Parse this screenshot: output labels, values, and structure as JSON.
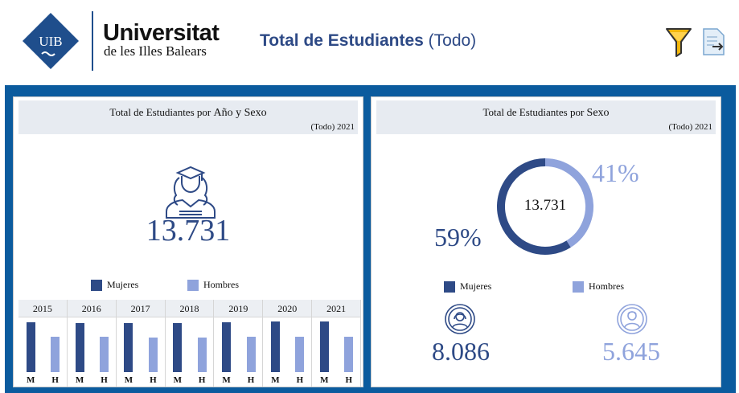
{
  "header": {
    "logo_mark_text": "UIB",
    "logo_name": "Universitat",
    "logo_subtitle": "de les Illes Balears",
    "title_bold": "Total de Estudiantes",
    "title_rest": "(Todo)",
    "filter_icon": "filter-funnel-icon",
    "export_icon": "export-document-icon"
  },
  "colors": {
    "frame": "#0b5b9e",
    "mujeres": "#2e4a86",
    "hombres": "#8fa3dc",
    "title": "#2e4a86"
  },
  "left_panel": {
    "title_prefix": "Total de Estudiantes por",
    "title_suffix": "Año y Sexo",
    "filter_text": "(Todo) 2021",
    "total": "13.731",
    "legend": [
      "Mujeres",
      "Hombres"
    ],
    "label_m": "M",
    "label_h": "H"
  },
  "right_panel": {
    "title_prefix": "Total de Estudiantes por",
    "title_suffix": "Sexo",
    "filter_text": "(Todo) 2021",
    "center_total": "13.731",
    "pct_mujeres": "59%",
    "pct_hombres": "41%",
    "legend": [
      "Mujeres",
      "Hombres"
    ],
    "mujeres_total": "8.086",
    "hombres_total": "5.645"
  },
  "chart_data": [
    {
      "type": "bar",
      "title": "Total de Estudiantes por Año y Sexo",
      "categories": [
        "2015",
        "2016",
        "2017",
        "2018",
        "2019",
        "2020",
        "2021"
      ],
      "series": [
        {
          "name": "Mujeres",
          "values": [
            7950,
            7860,
            7860,
            7860,
            7950,
            8160,
            8086
          ]
        },
        {
          "name": "Hombres",
          "values": [
            5700,
            5650,
            5600,
            5550,
            5650,
            5720,
            5645
          ]
        }
      ]
    },
    {
      "type": "pie",
      "title": "Total de Estudiantes por Sexo",
      "categories": [
        "Mujeres",
        "Hombres"
      ],
      "values": [
        8086,
        5645
      ],
      "labels": [
        "59%",
        "41%"
      ]
    }
  ]
}
